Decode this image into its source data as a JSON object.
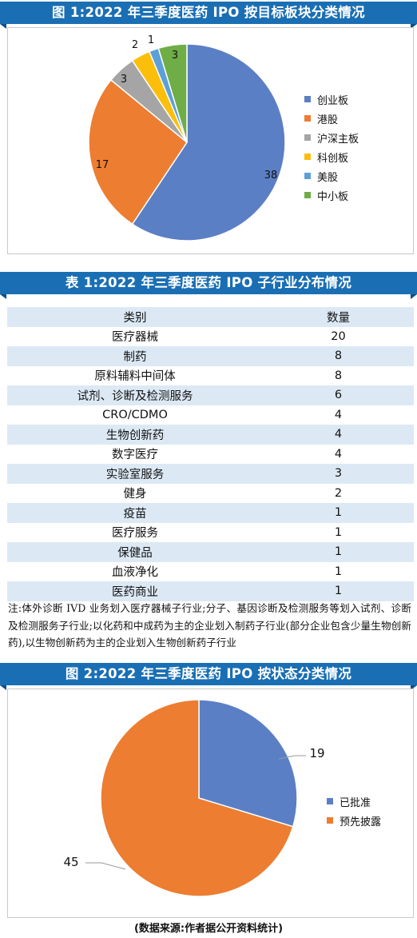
{
  "figure1": {
    "title": "图 1:2022 年三季度医药 IPO 按目标板块分类情况",
    "chart_data": {
      "type": "pie",
      "title": "图 1:2022 年三季度医药 IPO 按目标板块分类情况",
      "categories": [
        "创业板",
        "港股",
        "沪深主板",
        "科创板",
        "美股",
        "中小板"
      ],
      "values": [
        38,
        17,
        3,
        2,
        1,
        3
      ],
      "colors": [
        "#5b7fc5",
        "#ed7d31",
        "#a5a5a5",
        "#fbbf0b",
        "#5da0d8",
        "#6fad47"
      ],
      "legend": "right"
    }
  },
  "table1": {
    "title": "表 1:2022 年三季度医药 IPO 子行业分布情况",
    "header": [
      "类别",
      "数量"
    ],
    "rows": [
      [
        "医疗器械",
        "20"
      ],
      [
        "制药",
        "8"
      ],
      [
        "原料辅料中间体",
        "8"
      ],
      [
        "试剂、诊断及检测服务",
        "6"
      ],
      [
        "CRO/CDMO",
        "4"
      ],
      [
        "生物创新药",
        "4"
      ],
      [
        "数字医疗",
        "4"
      ],
      [
        "实验室服务",
        "3"
      ],
      [
        "健身",
        "2"
      ],
      [
        "疫苗",
        "1"
      ],
      [
        "医疗服务",
        "1"
      ],
      [
        "保健品",
        "1"
      ],
      [
        "血液净化",
        "1"
      ],
      [
        "医药商业",
        "1"
      ]
    ],
    "note": "注:体外诊断 IVD 业务划入医疗器械子行业;分子、基因诊断及检测服务等划入试剂、诊断及检测服务子行业;以化药和中成药为主的企业划入制药子行业(部分企业包含少量生物创新药),以生物创新药为主的企业划入生物创新药子行业"
  },
  "figure2": {
    "title": "图 2:2022 年三季度医药 IPO 按状态分类情况",
    "chart_data": {
      "type": "pie",
      "title": "图 2:2022 年三季度医药 IPO 按状态分类情况",
      "categories": [
        "已批准",
        "预先披露"
      ],
      "values": [
        19,
        45
      ],
      "colors": [
        "#5b7fc5",
        "#ed7d31"
      ],
      "legend": "right"
    }
  },
  "source": "(数据来源:作者据公开资料统计)",
  "theme": {
    "banner": "#1a6fb4",
    "banner_dark": "#0d4f8a",
    "row_alt": "#dce9f5"
  }
}
